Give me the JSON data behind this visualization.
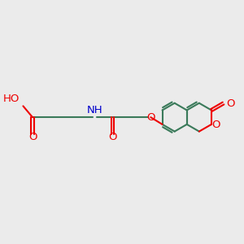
{
  "bg_color": "#ebebeb",
  "bond_color": "#3a7a5a",
  "o_color": "#ee0000",
  "n_color": "#0000cc",
  "line_width": 1.5,
  "font_size": 9.5,
  "fig_width": 3.0,
  "fig_height": 3.0,
  "dpi": 100,
  "xlim": [
    0,
    10
  ],
  "ylim": [
    0,
    10
  ],
  "y_chain": 5.2,
  "r_hex": 0.6,
  "rcx": 8.15,
  "rcy": 5.2,
  "x_COOH": 1.1,
  "x_C2": 1.95,
  "x_C3": 2.8,
  "x_N": 3.65,
  "x_C4": 4.5,
  "x_C5": 5.35,
  "x_O1": 6.1
}
